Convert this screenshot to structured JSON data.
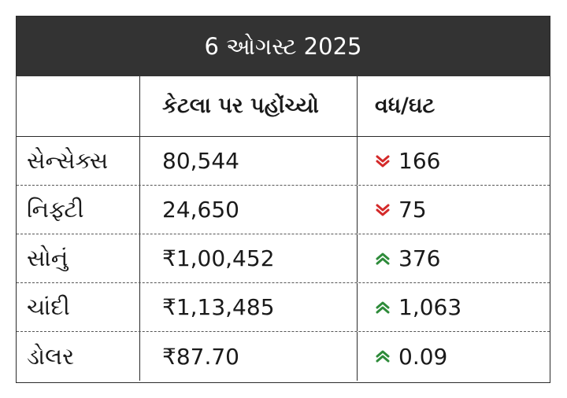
{
  "title": "6 ઓગસ્ટ 2025",
  "headers": {
    "col1": "",
    "col2": "કેટલા પર પહોંચ્યો",
    "col3": "વધ/ઘટ"
  },
  "colors": {
    "up": "#2e8b3a",
    "down": "#d42a2a",
    "title_bg": "#333333"
  },
  "rows": [
    {
      "name": "સેન્સેક્સ",
      "value": "80,544",
      "change": "166",
      "direction": "down"
    },
    {
      "name": "નિફ્ટી",
      "value": "24,650",
      "change": "75",
      "direction": "down"
    },
    {
      "name": "સોનું",
      "value": "₹1,00,452",
      "change": "376",
      "direction": "up"
    },
    {
      "name": "ચાંદી",
      "value": "₹1,13,485",
      "change": "1,063",
      "direction": "up"
    },
    {
      "name": "ડોલર",
      "value": "₹87.70",
      "change": "0.09",
      "direction": "up"
    }
  ]
}
